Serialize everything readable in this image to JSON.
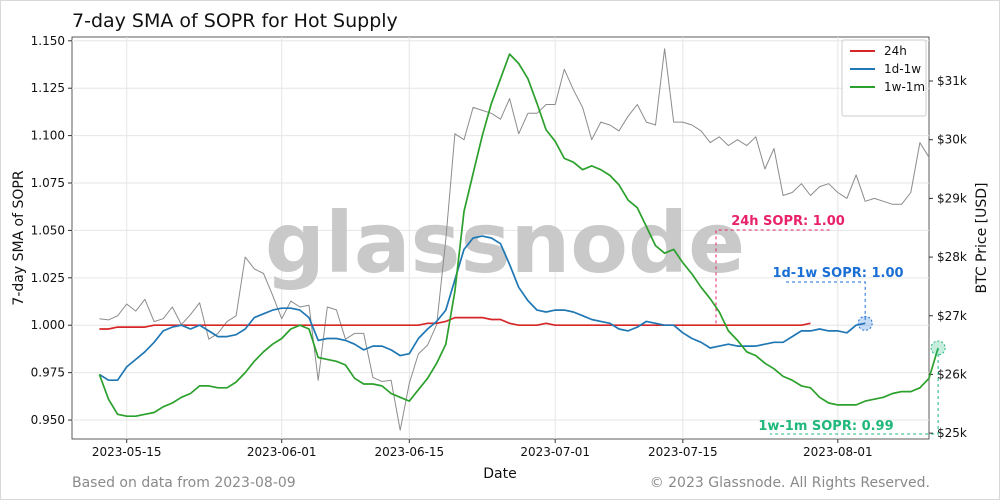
{
  "chart_data": {
    "type": "line",
    "title": "7-day SMA of SOPR for Hot Supply",
    "xlabel": "Date",
    "ylabel_left": "7-day SMA of SOPR",
    "ylabel_right": "BTC Price [USD]",
    "x_ticks": [
      "2023-05-15",
      "2023-06-01",
      "2023-06-15",
      "2023-07-01",
      "2023-07-15",
      "2023-08-01"
    ],
    "x_range": [
      "2023-05-09",
      "2023-08-11"
    ],
    "y_left_ticks": [
      "0.950",
      "0.975",
      "1.000",
      "1.025",
      "1.050",
      "1.075",
      "1.100",
      "1.125",
      "1.150"
    ],
    "ylim_left": [
      0.94,
      1.152
    ],
    "y_right_ticks": [
      "$25k",
      "$26k",
      "$27k",
      "$28k",
      "$29k",
      "$30k",
      "$31k"
    ],
    "ylim_right": [
      24900,
      31750
    ],
    "grid": true,
    "legend_position": "top-right",
    "watermark": "glassnode",
    "footer_left": "Based on data from 2023-08-09",
    "footer_right": "© 2023 Glassnode. All Rights Reserved.",
    "annotations": [
      {
        "label": "24h SOPR: 1.00",
        "color": "#e8216a"
      },
      {
        "label": "1d-1w SOPR: 1.00",
        "color": "#1a6fd6"
      },
      {
        "label": "1w-1m SOPR: 0.99",
        "color": "#1fb87a"
      }
    ],
    "start_date": "2023-05-12",
    "series": [
      {
        "name": "24h",
        "axis": "left",
        "color": "#d62728",
        "values": [
          0.998,
          0.998,
          0.999,
          0.999,
          0.999,
          0.999,
          1.0,
          1.0,
          1.0,
          1.0,
          1.0,
          1.0,
          1.0,
          1.0,
          1.0,
          1.0,
          1.0,
          1.0,
          1.0,
          1.0,
          1.0,
          1.0,
          1.0,
          1.0,
          1.0,
          1.0,
          1.0,
          1.0,
          1.0,
          1.0,
          1.0,
          1.0,
          1.0,
          1.0,
          1.0,
          1.0,
          1.001,
          1.001,
          1.002,
          1.004,
          1.004,
          1.004,
          1.004,
          1.003,
          1.003,
          1.001,
          1.0,
          1.0,
          1.0,
          1.001,
          1.0,
          1.0,
          1.0,
          1.0,
          1.0,
          1.0,
          1.0,
          1.0,
          1.0,
          1.0,
          1.0,
          1.0,
          1.0,
          1.0,
          1.0,
          1.0,
          1.0,
          1.0,
          1.0,
          1.0,
          1.0,
          1.0,
          1.0,
          1.0,
          1.0,
          1.0,
          1.0,
          1.0,
          1.001
        ]
      },
      {
        "name": "1d-1w",
        "axis": "left",
        "color": "#1f77b4",
        "values": [
          0.974,
          0.971,
          0.971,
          0.978,
          0.982,
          0.986,
          0.991,
          0.997,
          0.999,
          1.0,
          0.998,
          1.0,
          0.997,
          0.994,
          0.994,
          0.995,
          0.998,
          1.004,
          1.006,
          1.008,
          1.009,
          1.009,
          1.008,
          1.004,
          0.992,
          0.993,
          0.993,
          0.992,
          0.99,
          0.987,
          0.989,
          0.989,
          0.987,
          0.984,
          0.985,
          0.993,
          0.998,
          1.002,
          1.008,
          1.024,
          1.04,
          1.046,
          1.047,
          1.046,
          1.043,
          1.032,
          1.02,
          1.013,
          1.008,
          1.007,
          1.008,
          1.008,
          1.007,
          1.005,
          1.003,
          1.002,
          1.001,
          0.998,
          0.997,
          0.999,
          1.002,
          1.001,
          1.0,
          1.0,
          0.996,
          0.993,
          0.991,
          0.988,
          0.989,
          0.99,
          0.989,
          0.989,
          0.989,
          0.99,
          0.991,
          0.991,
          0.994,
          0.997,
          0.997,
          0.998,
          0.997,
          0.997,
          0.996,
          1.0,
          1.001
        ]
      },
      {
        "name": "1w-1m",
        "axis": "left",
        "color": "#2ca02c",
        "values": [
          0.974,
          0.961,
          0.953,
          0.952,
          0.952,
          0.953,
          0.954,
          0.957,
          0.959,
          0.962,
          0.964,
          0.968,
          0.968,
          0.967,
          0.967,
          0.97,
          0.975,
          0.981,
          0.986,
          0.99,
          0.993,
          0.998,
          1.0,
          0.998,
          0.983,
          0.982,
          0.981,
          0.979,
          0.972,
          0.969,
          0.969,
          0.968,
          0.964,
          0.962,
          0.96,
          0.966,
          0.972,
          0.98,
          0.99,
          1.018,
          1.06,
          1.08,
          1.1,
          1.117,
          1.13,
          1.143,
          1.138,
          1.13,
          1.117,
          1.103,
          1.097,
          1.088,
          1.086,
          1.082,
          1.084,
          1.082,
          1.079,
          1.074,
          1.066,
          1.062,
          1.052,
          1.042,
          1.038,
          1.04,
          1.033,
          1.027,
          1.02,
          1.014,
          1.007,
          0.997,
          0.992,
          0.986,
          0.984,
          0.98,
          0.977,
          0.973,
          0.971,
          0.968,
          0.967,
          0.962,
          0.959,
          0.958,
          0.958,
          0.958,
          0.96,
          0.961,
          0.962,
          0.964,
          0.965,
          0.965,
          0.967,
          0.972,
          0.988
        ]
      },
      {
        "name": "BTC Price",
        "axis": "right",
        "color": "#8c8c8c",
        "values": [
          26950,
          26930,
          27000,
          27200,
          27080,
          27280,
          26900,
          26950,
          27150,
          26850,
          27020,
          27220,
          26600,
          26700,
          26900,
          27000,
          28000,
          27800,
          27720,
          27350,
          26950,
          27250,
          27150,
          27180,
          25900,
          27150,
          27100,
          26600,
          26700,
          26700,
          25950,
          25880,
          25900,
          25050,
          25850,
          26350,
          26500,
          26850,
          28300,
          30100,
          30000,
          30550,
          30500,
          30450,
          30350,
          30700,
          30100,
          30450,
          30450,
          30600,
          30600,
          31200,
          30850,
          30550,
          30000,
          30300,
          30250,
          30150,
          30400,
          30600,
          30300,
          30250,
          31550,
          30300,
          30300,
          30250,
          30150,
          29950,
          30050,
          29900,
          30000,
          29900,
          30050,
          29500,
          29850,
          29050,
          29100,
          29250,
          29050,
          29200,
          29250,
          29100,
          29000,
          29400,
          28950,
          29000,
          28950,
          28900,
          28900,
          29100,
          29950,
          29700
        ]
      }
    ]
  }
}
